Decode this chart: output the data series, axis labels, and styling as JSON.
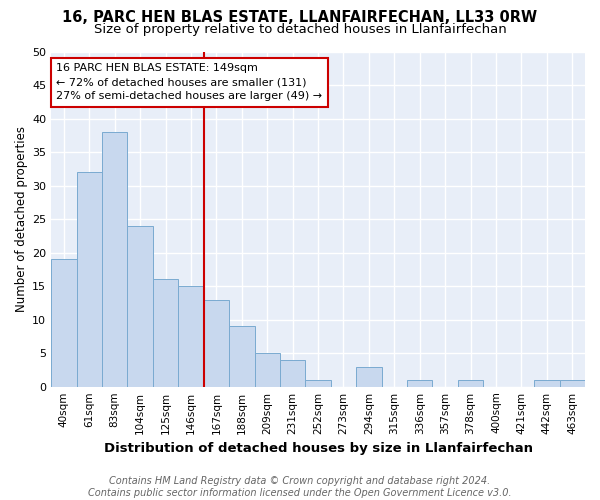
{
  "title": "16, PARC HEN BLAS ESTATE, LLANFAIRFECHAN, LL33 0RW",
  "subtitle": "Size of property relative to detached houses in Llanfairfechan",
  "xlabel": "Distribution of detached houses by size in Llanfairfechan",
  "ylabel": "Number of detached properties",
  "categories": [
    "40sqm",
    "61sqm",
    "83sqm",
    "104sqm",
    "125sqm",
    "146sqm",
    "167sqm",
    "188sqm",
    "209sqm",
    "231sqm",
    "252sqm",
    "273sqm",
    "294sqm",
    "315sqm",
    "336sqm",
    "357sqm",
    "378sqm",
    "400sqm",
    "421sqm",
    "442sqm",
    "463sqm"
  ],
  "values": [
    19,
    32,
    38,
    24,
    16,
    15,
    13,
    9,
    5,
    4,
    1,
    0,
    3,
    0,
    1,
    0,
    1,
    0,
    0,
    1,
    1
  ],
  "bar_color": "#c8d8ee",
  "bar_edge_color": "#7aaad0",
  "vline_x_index": 5,
  "vline_color": "#cc0000",
  "annotation_text": "16 PARC HEN BLAS ESTATE: 149sqm\n← 72% of detached houses are smaller (131)\n27% of semi-detached houses are larger (49) →",
  "annotation_box_color": "#cc0000",
  "ylim": [
    0,
    50
  ],
  "yticks": [
    0,
    5,
    10,
    15,
    20,
    25,
    30,
    35,
    40,
    45,
    50
  ],
  "footer_line1": "Contains HM Land Registry data © Crown copyright and database right 2024.",
  "footer_line2": "Contains public sector information licensed under the Open Government Licence v3.0.",
  "background_color": "#ffffff",
  "plot_background_color": "#e8eef8",
  "grid_color": "#ffffff",
  "title_fontsize": 10.5,
  "subtitle_fontsize": 9.5,
  "annotation_fontsize": 8,
  "footer_fontsize": 7,
  "xlabel_fontsize": 9.5,
  "ylabel_fontsize": 8.5
}
